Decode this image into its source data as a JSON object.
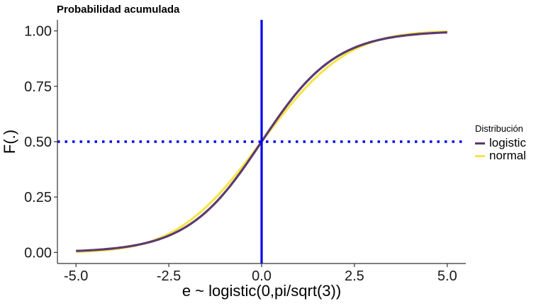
{
  "chart_data": {
    "type": "line",
    "title": "Probabilidad acumulada",
    "xlabel": "e ~ logistic(0,pi/sqrt(3))",
    "ylabel": "F(.)",
    "xlim": [
      -5.5,
      5.5
    ],
    "ylim": [
      -0.05,
      1.05
    ],
    "x_ticks": [
      -5,
      -2.5,
      0,
      2.5,
      5
    ],
    "x_tick_labels": [
      "-5.0",
      "-2.5",
      "0.0",
      "2.5",
      "5.0"
    ],
    "y_ticks": [
      0,
      0.25,
      0.5,
      0.75,
      1
    ],
    "y_tick_labels": [
      "0.00",
      "0.25",
      "0.50",
      "0.75",
      "1.00"
    ],
    "x_range": [
      -5,
      5
    ],
    "series": [
      {
        "name": "logistic",
        "color": "#5b3a70",
        "x": [
          -5,
          -4.5,
          -4,
          -3.5,
          -3,
          -2.5,
          -2,
          -1.5,
          -1,
          -0.5,
          0,
          0.5,
          1,
          1.5,
          2,
          2.5,
          3,
          3.5,
          4,
          4.5,
          5
        ],
        "y": [
          0.0066,
          0.0109,
          0.018,
          0.0293,
          0.0474,
          0.0759,
          0.1192,
          0.1824,
          0.2689,
          0.3775,
          0.5,
          0.6225,
          0.7311,
          0.8176,
          0.8808,
          0.9241,
          0.9526,
          0.9707,
          0.982,
          0.9891,
          0.9934
        ]
      },
      {
        "name": "normal",
        "color": "#f6e54a",
        "x": [
          -5,
          -4.5,
          -4,
          -3.5,
          -3,
          -2.5,
          -2,
          -1.5,
          -1,
          -0.5,
          0,
          0.5,
          1,
          1.5,
          2,
          2.5,
          3,
          3.5,
          4,
          4.5,
          5
        ],
        "y": [
          0.0029,
          0.006,
          0.0119,
          0.0222,
          0.0396,
          0.0671,
          0.1082,
          0.1658,
          0.2426,
          0.3421,
          0.5,
          0.6579,
          0.7574,
          0.8342,
          0.8918,
          0.9329,
          0.9604,
          0.9778,
          0.9881,
          0.994,
          0.9971
        ]
      }
    ],
    "reference_lines": [
      {
        "orientation": "vertical",
        "value": 0,
        "color": "#0000ee",
        "style": "solid"
      },
      {
        "orientation": "horizontal",
        "value": 0.5,
        "color": "#0000ee",
        "style": "dotted"
      }
    ],
    "legend": {
      "title": "Distribución",
      "position": "right"
    },
    "grid": false
  }
}
